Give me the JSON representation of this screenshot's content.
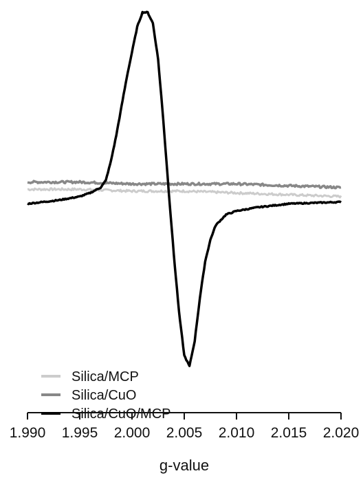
{
  "chart_data": {
    "type": "line",
    "title": "",
    "xlabel": "g-value",
    "ylabel": "",
    "xlim": [
      1.99,
      2.02
    ],
    "ylim": [
      -1.0,
      1.0
    ],
    "y_axis_visible": false,
    "grid": false,
    "legend_position": "bottom-left",
    "x_ticks": [
      1.99,
      1.995,
      2.0,
      2.005,
      2.01,
      2.015,
      2.02
    ],
    "x_tick_labels": [
      "1.990",
      "1.995",
      "2.000",
      "2.005",
      "2.010",
      "2.015",
      "2.020"
    ],
    "series": [
      {
        "name": "Silica/MCP",
        "color": "#cccccc",
        "x": [
          1.99,
          1.995,
          2.0,
          2.005,
          2.01,
          2.015,
          2.02
        ],
        "y": [
          0.02,
          0.02,
          0.01,
          0.01,
          0.0,
          -0.01,
          -0.02
        ]
      },
      {
        "name": "Silica/CuO",
        "color": "#888888",
        "x": [
          1.99,
          1.995,
          2.0,
          2.005,
          2.01,
          2.015,
          2.02
        ],
        "y": [
          0.06,
          0.06,
          0.05,
          0.05,
          0.05,
          0.04,
          0.03
        ]
      },
      {
        "name": "Silica/CuO/MCP",
        "color": "#000000",
        "x": [
          1.99,
          1.993,
          1.995,
          1.996,
          1.997,
          1.9975,
          1.998,
          1.9985,
          1.999,
          1.9995,
          2.0,
          2.0005,
          2.001,
          2.0015,
          2.002,
          2.0025,
          2.003,
          2.0035,
          2.004,
          2.0045,
          2.005,
          2.0055,
          2.006,
          2.0065,
          2.007,
          2.0075,
          2.008,
          2.009,
          2.01,
          2.012,
          2.015,
          2.02
        ],
        "y": [
          -0.06,
          -0.04,
          -0.02,
          0.0,
          0.03,
          0.07,
          0.18,
          0.32,
          0.48,
          0.64,
          0.78,
          0.92,
          1.0,
          1.0,
          0.94,
          0.74,
          0.4,
          0.02,
          -0.34,
          -0.66,
          -0.9,
          -0.96,
          -0.82,
          -0.58,
          -0.38,
          -0.26,
          -0.18,
          -0.12,
          -0.1,
          -0.08,
          -0.06,
          -0.05
        ]
      }
    ]
  }
}
